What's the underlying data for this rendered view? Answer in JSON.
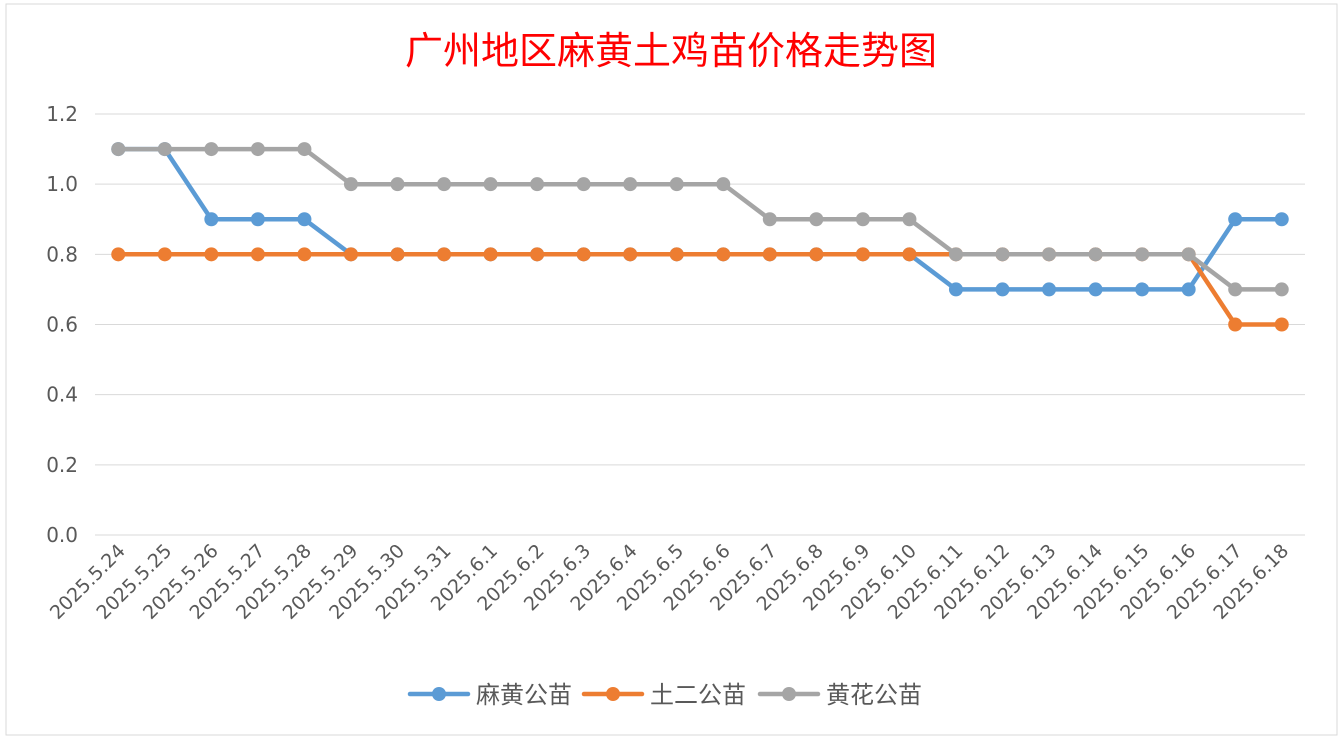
{
  "chart_data": {
    "type": "line",
    "title": "广州地区麻黄土鸡苗价格走势图",
    "title_color": "#ff0000",
    "categories": [
      "2025.5.24",
      "2025.5.25",
      "2025.5.26",
      "2025.5.27",
      "2025.5.28",
      "2025.5.29",
      "2025.5.30",
      "2025.5.31",
      "2025.6.1",
      "2025.6.2",
      "2025.6.3",
      "2025.6.4",
      "2025.6.5",
      "2025.6.6",
      "2025.6.7",
      "2025.6.8",
      "2025.6.9",
      "2025.6.10",
      "2025.6.11",
      "2025.6.12",
      "2025.6.13",
      "2025.6.14",
      "2025.6.15",
      "2025.6.16",
      "2025.6.17",
      "2025.6.18"
    ],
    "yticks": [
      "0.0",
      "0.2",
      "0.4",
      "0.6",
      "0.8",
      "1.0",
      "1.2"
    ],
    "ylim": [
      0,
      1.2
    ],
    "grid": true,
    "legend_position": "bottom",
    "series": [
      {
        "name": "麻黄公苗",
        "color": "#5b9bd5",
        "values": [
          1.1,
          1.1,
          0.9,
          0.9,
          0.9,
          0.8,
          0.8,
          0.8,
          0.8,
          0.8,
          0.8,
          0.8,
          0.8,
          0.8,
          0.8,
          0.8,
          0.8,
          0.8,
          0.7,
          0.7,
          0.7,
          0.7,
          0.7,
          0.7,
          0.9,
          0.9
        ]
      },
      {
        "name": "土二公苗",
        "color": "#ed7d31",
        "values": [
          0.8,
          0.8,
          0.8,
          0.8,
          0.8,
          0.8,
          0.8,
          0.8,
          0.8,
          0.8,
          0.8,
          0.8,
          0.8,
          0.8,
          0.8,
          0.8,
          0.8,
          0.8,
          0.8,
          0.8,
          0.8,
          0.8,
          0.8,
          0.8,
          0.6,
          0.6
        ]
      },
      {
        "name": "黄花公苗",
        "color": "#a5a5a5",
        "values": [
          1.1,
          1.1,
          1.1,
          1.1,
          1.1,
          1.0,
          1.0,
          1.0,
          1.0,
          1.0,
          1.0,
          1.0,
          1.0,
          1.0,
          0.9,
          0.9,
          0.9,
          0.9,
          0.8,
          0.8,
          0.8,
          0.8,
          0.8,
          0.8,
          0.7,
          0.7
        ]
      }
    ]
  }
}
